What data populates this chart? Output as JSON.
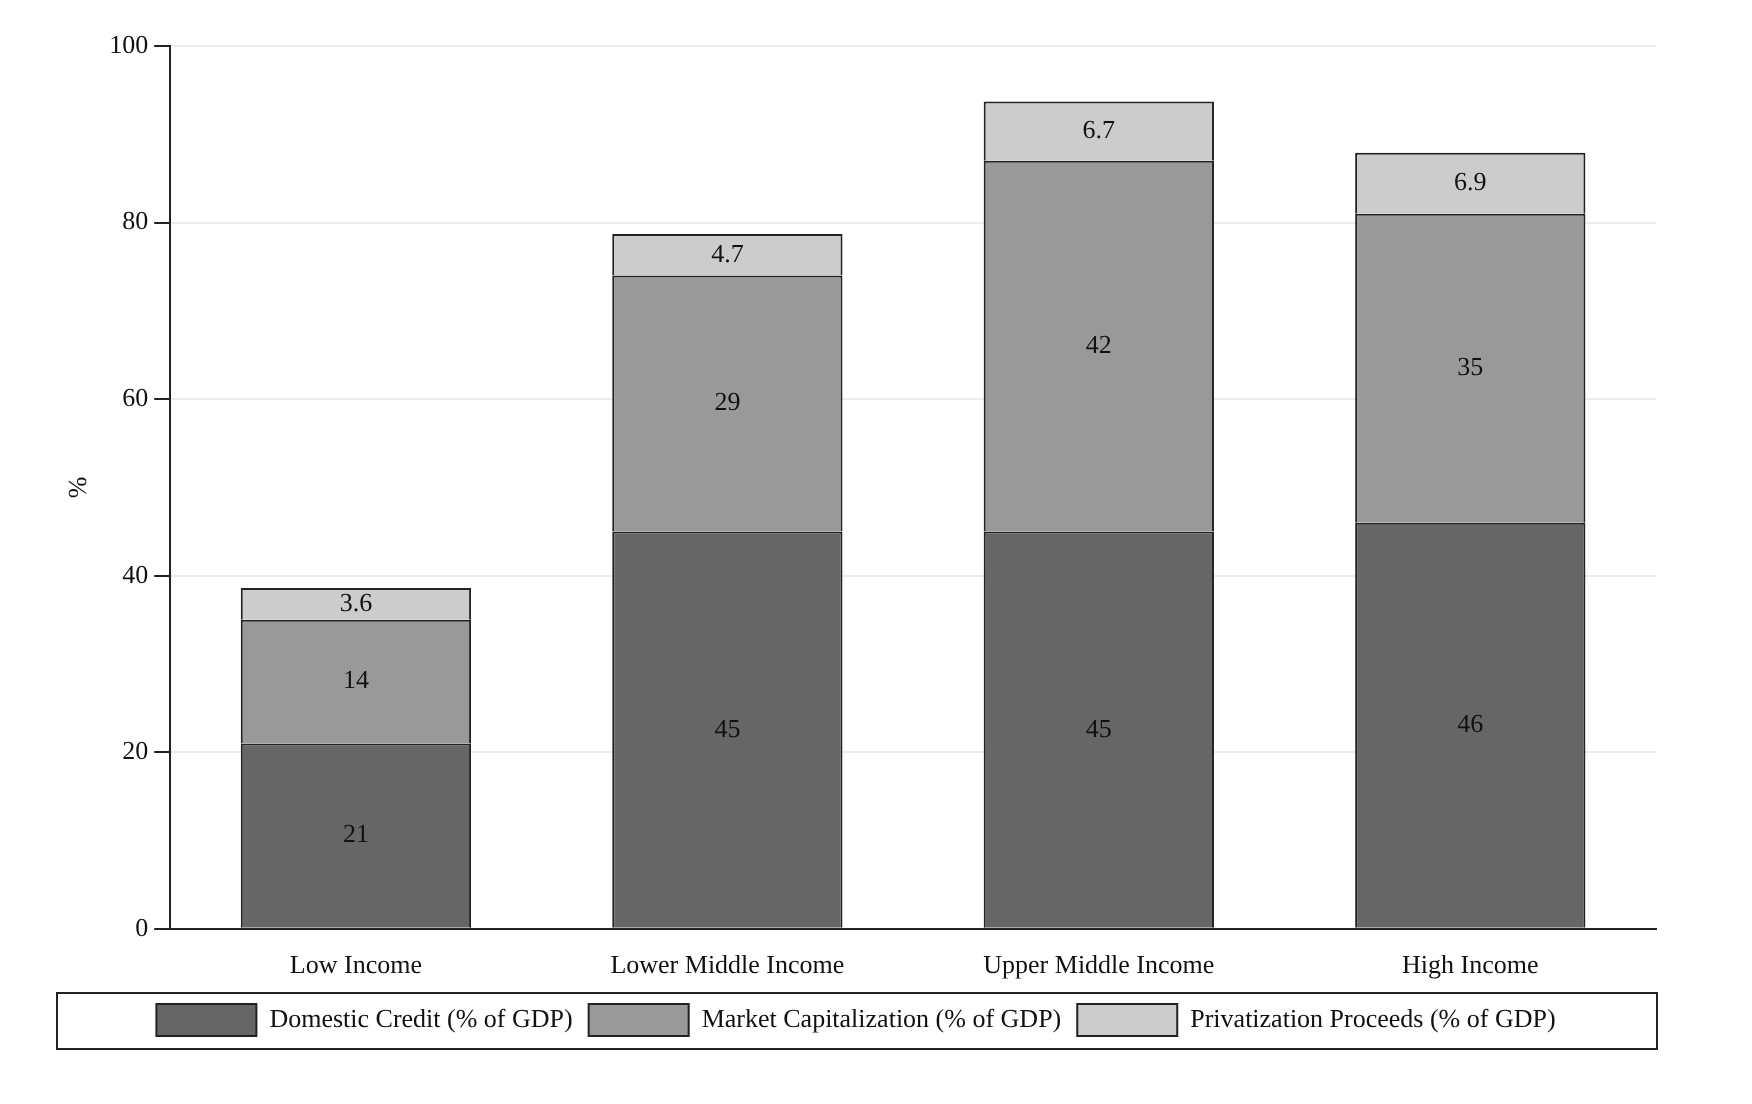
{
  "chart_data": {
    "type": "bar",
    "stacked": true,
    "ylabel": "%",
    "categories": [
      "Low Income",
      "Lower Middle Income",
      "Upper Middle Income",
      "High Income"
    ],
    "series": [
      {
        "name": "Domestic Credit (% of GDP)",
        "color": "#666666",
        "values": [
          21,
          45,
          45,
          46
        ]
      },
      {
        "name": "Market Capitalization (% of GDP)",
        "color": "#999999",
        "values": [
          14,
          29,
          42,
          35
        ]
      },
      {
        "name": "Privatization Proceeds (% of GDP)",
        "color": "#cccccc",
        "values": [
          3.6,
          4.7,
          6.7,
          6.9
        ]
      }
    ],
    "ylim": [
      0,
      100
    ],
    "yticks": [
      0,
      20,
      40,
      60,
      80,
      100
    ],
    "grid": "y",
    "legend": "bottom",
    "data_labels": true
  }
}
